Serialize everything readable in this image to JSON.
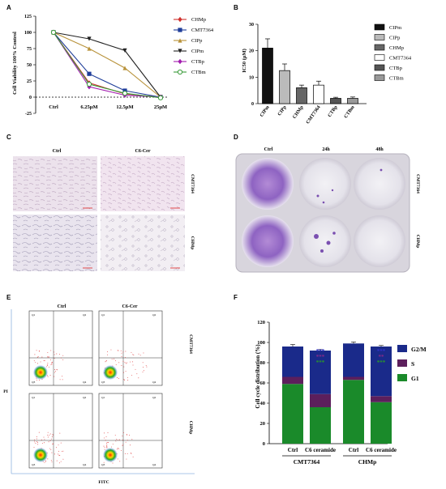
{
  "panels": {
    "A": "A",
    "B": "B",
    "C": "C",
    "D": "D",
    "E": "E",
    "F": "F"
  },
  "chart_data": [
    {
      "panel": "A",
      "type": "line",
      "ylabel": "Cell Viability 100% Control",
      "categories": [
        "Ctrl",
        "6.25μM",
        "12.5μM",
        "25μM"
      ],
      "ylim": [
        -25,
        125
      ],
      "yticks": [
        -25,
        0,
        25,
        50,
        75,
        100,
        125
      ],
      "reference_line": 0,
      "legend_position": "right",
      "series": [
        {
          "name": "CHMp",
          "values": [
            100,
            22,
            5,
            0
          ],
          "color": "#d0312d",
          "marker": "diamond"
        },
        {
          "name": "CMT7364",
          "values": [
            100,
            36,
            10,
            0
          ],
          "color": "#1f3d99",
          "marker": "square"
        },
        {
          "name": "CIPp",
          "values": [
            100,
            75,
            45,
            0
          ],
          "color": "#b8923a",
          "marker": "triangle"
        },
        {
          "name": "CIPm",
          "values": [
            100,
            90,
            72,
            0
          ],
          "color": "#222222",
          "marker": "triangle-down"
        },
        {
          "name": "CTBp",
          "values": [
            100,
            16,
            3,
            0
          ],
          "color": "#a21caf",
          "marker": "diamond"
        },
        {
          "name": "CTBm",
          "values": [
            100,
            20,
            6,
            -1
          ],
          "color": "#3a9b3a",
          "marker": "circle-open"
        }
      ]
    },
    {
      "panel": "B",
      "type": "bar",
      "ylabel": "IC50 (μM)",
      "categories": [
        "CIPm",
        "CIPp",
        "CHMp",
        "CMT7364",
        "CTBp",
        "CTBm"
      ],
      "values": [
        21,
        12.5,
        6,
        7,
        2,
        2
      ],
      "errors": [
        3.5,
        2.5,
        1,
        1.5,
        0.4,
        0.5
      ],
      "ylim": [
        0,
        30
      ],
      "yticks": [
        0,
        10,
        20,
        30
      ],
      "fills": [
        "#111111",
        "#bbbbbb",
        "#666666",
        "#ffffff",
        "#555555",
        "#999999"
      ],
      "legend_position": "right"
    },
    {
      "panel": "F",
      "type": "bar",
      "stacked": true,
      "ylabel": "Cell cycle distribution (%)",
      "categories": [
        "Ctrl",
        "C6 ceramide",
        "Ctrl",
        "C6 ceramide"
      ],
      "groups": [
        "CMT7364",
        "CHMp"
      ],
      "ylim": [
        0,
        120
      ],
      "yticks": [
        0,
        20,
        40,
        60,
        80,
        100,
        120
      ],
      "legend_position": "right",
      "series": [
        {
          "name": "G1",
          "values": [
            59,
            36,
            63,
            41
          ],
          "color": "#1a8a2a"
        },
        {
          "name": "S",
          "values": [
            7,
            13,
            3,
            6
          ],
          "color": "#5c1f5c"
        },
        {
          "name": "G2/M",
          "values": [
            30,
            43,
            33,
            49
          ],
          "color": "#1a2a8a"
        }
      ],
      "totals_err": [
        2,
        1,
        1.5,
        1
      ],
      "significance": [
        {
          "col": 1,
          "marks": [
            {
              "text": "***",
              "color": "#3333cc"
            },
            {
              "text": "***",
              "color": "#8a2a8a"
            },
            {
              "text": "***",
              "color": "#2a9a2a"
            }
          ]
        },
        {
          "col": 3,
          "marks": [
            {
              "text": "***",
              "color": "#3333cc"
            },
            {
              "text": "**",
              "color": "#8a2a8a"
            },
            {
              "text": "***",
              "color": "#2a9a2a"
            }
          ]
        }
      ]
    }
  ],
  "panel_C": {
    "col_labels": [
      "Ctrl",
      "C6-Cer"
    ],
    "row_labels": [
      "CMT7364",
      "CHMp"
    ],
    "scale_text": "100 μm"
  },
  "panel_D": {
    "col_labels": [
      "Ctrl",
      "24h",
      "48h"
    ],
    "row_labels": [
      "CMT7364",
      "CHMp"
    ]
  },
  "panel_E": {
    "col_labels": [
      "Ctrl",
      "C6-Cer"
    ],
    "row_labels": [
      "CMT7364",
      "CHMp"
    ],
    "y_axis": "PI",
    "x_axis": "FITC",
    "quadrant_labels": [
      "Q1",
      "Q2",
      "Q3",
      "Q4"
    ]
  }
}
